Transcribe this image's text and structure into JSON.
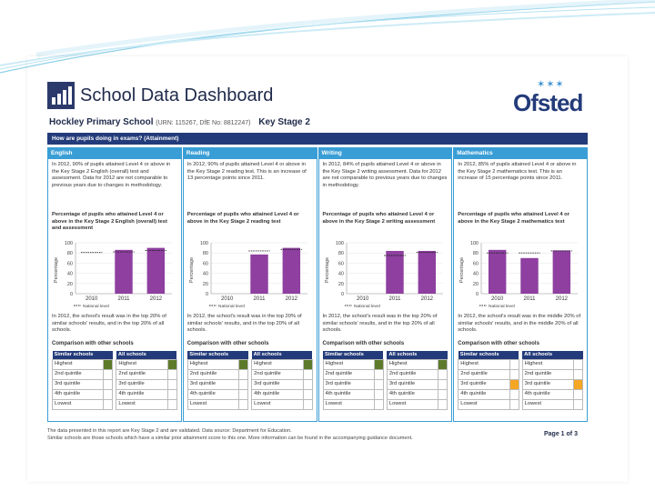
{
  "header": {
    "logo_text": "School Data Dashboard",
    "ofsted_text": "Ofsted",
    "ofsted_stars": "✶✶✶",
    "school_name": "Hockley Primary School",
    "school_ids": "(URN: 115267, DfE No: 8812247)",
    "key_stage": "Key Stage 2",
    "banner": "How are pupils doing in exams? (Attainment)"
  },
  "columns": [
    {
      "head": "English",
      "intro": "In 2012, 90% of pupils attained Level 4 or above in the Key Stage 2 English (overall) test and assessment. Data for 2012 are not comparable to previous years due to changes in methodology.",
      "sub": "Percentage of pupils who attained Level 4 or above in the Key Stage 2 English (overall) test and assessment",
      "result": "In 2012, the school's result was in the top 20% of similar schools' results, and in the top 20% of all schools.",
      "comp": "Comparison with other schools"
    },
    {
      "head": "Reading",
      "intro": "In 2012, 90% of pupils attained Level 4 or above in the Key Stage 2 reading test. This is an increase of 13 percentage points since 2011.",
      "sub": "Percentage of pupils who attained Level 4 or above in the Key Stage 2 reading test",
      "result": "In 2012, the school's result was in the top 20% of similar schools' results, and in the top 20% of all schools.",
      "comp": "Comparison with other schools"
    },
    {
      "head": "Writing",
      "intro": "In 2012, 84% of pupils attained Level 4 or above in the Key Stage 2 writing assessment. Data for 2012 are not comparable to previous years due to changes in methodology.",
      "sub": "Percentage of pupils who attained Level 4 or above in the Key Stage 2 writing assessment",
      "result": "In 2012, the school's result was in the top 20% of similar schools' results, and in the top 20% of all schools.",
      "comp": "Comparison with other schools"
    },
    {
      "head": "Mathematics",
      "intro": "In 2012, 85% of pupils attained Level 4 or above in the Key Stage 2 mathematics test. This is an increase of 15 percentage points since 2011.",
      "sub": "Percentage of pupils who attained Level 4 or above in the Key Stage 2 mathematics test",
      "result": "In 2012, the school's result was in the middle 20% of similar schools' results, and in the middle 20% of all schools.",
      "comp": "Comparison with other schools"
    }
  ],
  "quintiles": {
    "similar_head": "Similar schools",
    "all_head": "All schools",
    "rows": [
      "Highest",
      "2nd quintile",
      "3rd quintile",
      "4th quintile",
      "Lowest"
    ]
  },
  "chart_data": [
    {
      "type": "bar",
      "title": "English",
      "categories": [
        "2010",
        "2011",
        "2012"
      ],
      "values": [
        null,
        86,
        90
      ],
      "national": [
        81,
        82,
        85
      ],
      "ylabel": "Percentage",
      "ylim": [
        0,
        100
      ],
      "ticks": [
        "0",
        "20",
        "40",
        "60",
        "80",
        "100"
      ],
      "legend": "National level"
    },
    {
      "type": "bar",
      "title": "Reading",
      "categories": [
        "2010",
        "2011",
        "2012"
      ],
      "values": [
        null,
        77,
        90
      ],
      "national": [
        null,
        84,
        87
      ],
      "ylabel": "Percentage",
      "ylim": [
        0,
        100
      ],
      "ticks": [
        "0",
        "20",
        "40",
        "60",
        "80",
        "100"
      ],
      "legend": "National level"
    },
    {
      "type": "bar",
      "title": "Writing",
      "categories": [
        "2010",
        "2011",
        "2012"
      ],
      "values": [
        null,
        84,
        84
      ],
      "national": [
        null,
        75,
        81
      ],
      "ylabel": "Percentage",
      "ylim": [
        0,
        100
      ],
      "ticks": [
        "0",
        "20",
        "40",
        "60",
        "80",
        "100"
      ],
      "legend": "National level"
    },
    {
      "type": "bar",
      "title": "Mathematics",
      "categories": [
        "2010",
        "2011",
        "2012"
      ],
      "values": [
        86,
        70,
        85
      ],
      "national": [
        80,
        80,
        84
      ],
      "ylabel": "Percentage",
      "ylim": [
        0,
        100
      ],
      "ticks": [
        "0",
        "20",
        "40",
        "60",
        "80",
        "100"
      ],
      "legend": "National level"
    }
  ],
  "marks": [
    {
      "similar": 0,
      "all": 0,
      "color": "#5d7a2a"
    },
    {
      "similar": 0,
      "all": 0,
      "color": "#5d7a2a"
    },
    {
      "similar": 0,
      "all": 0,
      "color": "#5d7a2a"
    },
    {
      "similar": 2,
      "all": 2,
      "color": "#f5a623"
    }
  ],
  "footer": {
    "line1": "The data presented in this report are Key Stage 2 and are validated. Data source: Department for Education.",
    "line2": "Similar schools are those schools which have a similar prior attainment score to this one. More information can be found in the accompanying guidance document.",
    "page": "Page 1 of 3"
  },
  "colors": {
    "bar": "#8e3fa0",
    "navy": "#233b7a",
    "blue": "#3a9ed6"
  }
}
